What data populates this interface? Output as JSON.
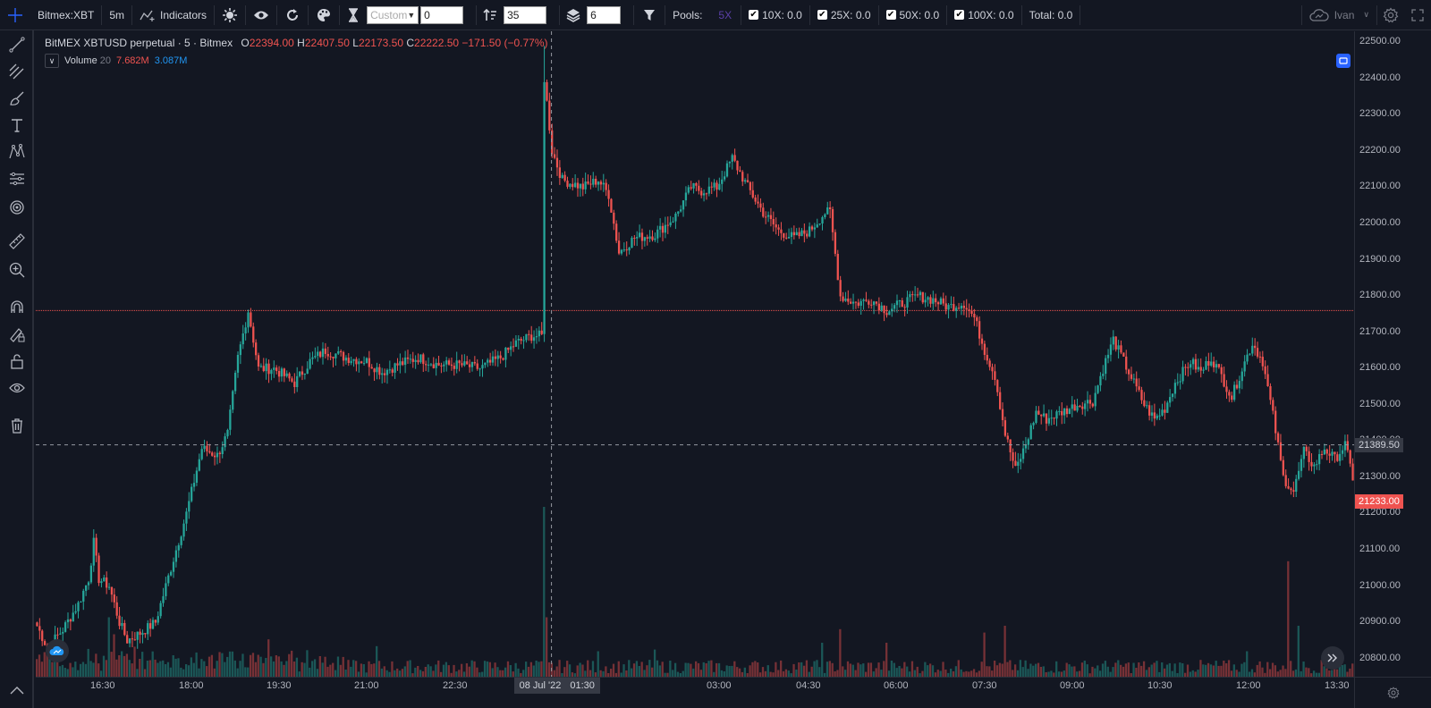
{
  "toolbar": {
    "symbol": "Bitmex:XBT",
    "interval": "5m",
    "indicators_label": "Indicators",
    "custom_placeholder": "Custom",
    "custom_value": "0",
    "sort_value": "35",
    "layers_value": "6",
    "pools_label": "Pools:",
    "pool_5x": "5X",
    "pools": [
      {
        "label": "10X: 0.0",
        "checked": true
      },
      {
        "label": "25X: 0.0",
        "checked": true
      },
      {
        "label": "50X: 0.0",
        "checked": true
      },
      {
        "label": "100X: 0.0",
        "checked": true
      }
    ],
    "total_label": "Total: 0.0",
    "user_name": "Ivan"
  },
  "legend": {
    "title": "BitMEX XBTUSD perpetual · 5 · Bitmex",
    "o_label": "O",
    "o_value": "22394.00",
    "h_label": "H",
    "h_value": "22407.50",
    "l_label": "L",
    "l_value": "22173.50",
    "c_label": "C",
    "c_value": "22222.50",
    "change": "−171.50 (−0.77%)"
  },
  "volume_legend": {
    "label": "Volume",
    "length": "20",
    "value_a": "7.682M",
    "value_b": "3.087M"
  },
  "price_axis": {
    "ticks": [
      "22500.00",
      "22400.00",
      "22300.00",
      "22200.00",
      "22100.00",
      "22000.00",
      "21900.00",
      "21800.00",
      "21700.00",
      "21600.00",
      "21500.00",
      "21400.00",
      "21300.00",
      "21200.00",
      "21100.00",
      "21000.00",
      "20900.00",
      "20800.00"
    ],
    "crosshair_price": "21389.50",
    "last_price": "21233.00"
  },
  "time_axis": {
    "ticks": [
      "16:30",
      "18:00",
      "19:30",
      "21:00",
      "22:30",
      "8",
      "03:00",
      "04:30",
      "06:00",
      "07:30",
      "09:00",
      "10:30",
      "12:00",
      "13:30"
    ],
    "crosshair_date": "08 Jul '22",
    "crosshair_time": "01:30"
  },
  "colors": {
    "up": "#26a69a",
    "down": "#ef5350",
    "background": "#131722",
    "grid": "#2a2e39",
    "accent": "#2962ff"
  },
  "chart_data": {
    "type": "candlestick",
    "title": "BitMEX XBTUSD perpetual · 5 · Bitmex",
    "ylim": [
      20750,
      22530
    ],
    "horizontal_line": 21760,
    "crosshair": {
      "price": 21389.5,
      "time": "08 Jul '22 01:30"
    },
    "pivots": [
      [
        0,
        20890
      ],
      [
        4,
        20830
      ],
      [
        10,
        20880
      ],
      [
        16,
        20950
      ],
      [
        20,
        21020
      ],
      [
        22,
        21120
      ],
      [
        24,
        21020
      ],
      [
        28,
        21000
      ],
      [
        32,
        20900
      ],
      [
        35,
        20850
      ],
      [
        40,
        20870
      ],
      [
        46,
        20900
      ],
      [
        52,
        21050
      ],
      [
        58,
        21200
      ],
      [
        64,
        21380
      ],
      [
        70,
        21360
      ],
      [
        74,
        21420
      ],
      [
        78,
        21630
      ],
      [
        82,
        21760
      ],
      [
        86,
        21600
      ],
      [
        92,
        21600
      ],
      [
        100,
        21560
      ],
      [
        106,
        21620
      ],
      [
        112,
        21650
      ],
      [
        120,
        21630
      ],
      [
        128,
        21620
      ],
      [
        134,
        21590
      ],
      [
        140,
        21610
      ],
      [
        148,
        21630
      ],
      [
        156,
        21610
      ],
      [
        164,
        21610
      ],
      [
        172,
        21600
      ],
      [
        180,
        21630
      ],
      [
        186,
        21670
      ],
      [
        192,
        21690
      ],
      [
        196,
        21690
      ],
      [
        197,
        22400
      ],
      [
        200,
        22200
      ],
      [
        204,
        22120
      ],
      [
        212,
        22100
      ],
      [
        218,
        22120
      ],
      [
        222,
        22080
      ],
      [
        226,
        21920
      ],
      [
        232,
        21960
      ],
      [
        240,
        21970
      ],
      [
        248,
        22020
      ],
      [
        254,
        22100
      ],
      [
        258,
        22090
      ],
      [
        264,
        22100
      ],
      [
        270,
        22180
      ],
      [
        276,
        22100
      ],
      [
        282,
        22030
      ],
      [
        288,
        21980
      ],
      [
        294,
        21960
      ],
      [
        300,
        21980
      ],
      [
        306,
        22030
      ],
      [
        308,
        22030
      ],
      [
        312,
        21800
      ],
      [
        318,
        21780
      ],
      [
        324,
        21790
      ],
      [
        330,
        21760
      ],
      [
        336,
        21780
      ],
      [
        342,
        21800
      ],
      [
        348,
        21790
      ],
      [
        354,
        21770
      ],
      [
        360,
        21780
      ],
      [
        364,
        21740
      ],
      [
        368,
        21650
      ],
      [
        372,
        21580
      ],
      [
        376,
        21420
      ],
      [
        380,
        21320
      ],
      [
        384,
        21390
      ],
      [
        388,
        21480
      ],
      [
        392,
        21460
      ],
      [
        398,
        21480
      ],
      [
        404,
        21500
      ],
      [
        410,
        21510
      ],
      [
        414,
        21600
      ],
      [
        418,
        21680
      ],
      [
        422,
        21620
      ],
      [
        426,
        21560
      ],
      [
        430,
        21500
      ],
      [
        434,
        21460
      ],
      [
        438,
        21490
      ],
      [
        442,
        21560
      ],
      [
        448,
        21620
      ],
      [
        452,
        21590
      ],
      [
        456,
        21630
      ],
      [
        460,
        21580
      ],
      [
        464,
        21520
      ],
      [
        468,
        21600
      ],
      [
        472,
        21670
      ],
      [
        476,
        21620
      ],
      [
        480,
        21470
      ],
      [
        484,
        21300
      ],
      [
        488,
        21260
      ],
      [
        492,
        21370
      ],
      [
        496,
        21330
      ],
      [
        500,
        21380
      ],
      [
        504,
        21350
      ],
      [
        508,
        21390
      ],
      [
        511,
        21300
      ]
    ],
    "candle_count": 512,
    "volume_spikes": [
      [
        28,
        0.35
      ],
      [
        30,
        0.25
      ],
      [
        90,
        0.22
      ],
      [
        132,
        0.18
      ],
      [
        197,
        1.0
      ],
      [
        198,
        0.35
      ],
      [
        218,
        0.15
      ],
      [
        240,
        0.16
      ],
      [
        305,
        0.2
      ],
      [
        312,
        0.28
      ],
      [
        330,
        0.2
      ],
      [
        368,
        0.26
      ],
      [
        376,
        0.3
      ],
      [
        470,
        0.15
      ],
      [
        486,
        0.68
      ],
      [
        490,
        0.3
      ]
    ]
  }
}
